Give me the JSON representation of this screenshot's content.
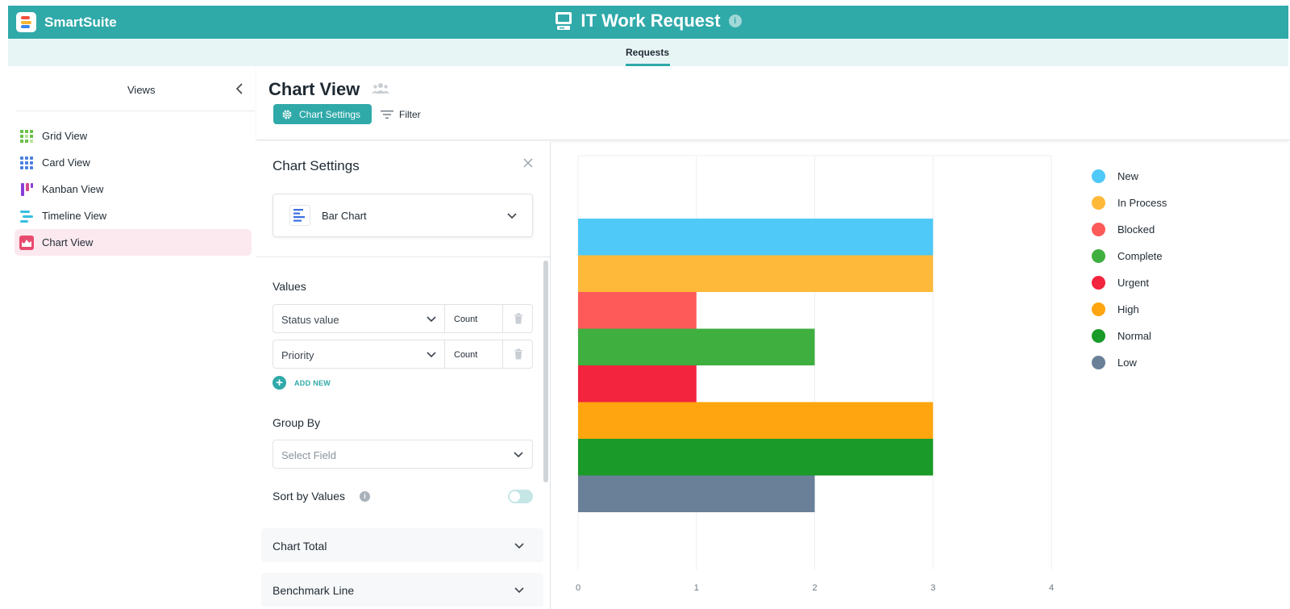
{
  "app": {
    "brand": "SmartSuite",
    "title": "IT Work Request",
    "info_icon": "info-icon",
    "active_tab": "Requests"
  },
  "sidebar": {
    "title": "Views",
    "items": [
      {
        "label": "Grid View",
        "icon": "grid-view-icon",
        "color": "#6cc04a"
      },
      {
        "label": "Card View",
        "icon": "card-view-icon",
        "color": "#4a7fe0"
      },
      {
        "label": "Kanban View",
        "icon": "kanban-view-icon",
        "color": "#8a3fd8"
      },
      {
        "label": "Timeline View",
        "icon": "timeline-view-icon",
        "color": "#38bde0"
      },
      {
        "label": "Chart View",
        "icon": "chart-view-icon",
        "color": "#e84a6f",
        "active": true
      }
    ]
  },
  "header": {
    "view_title": "Chart View",
    "chart_settings_label": "Chart Settings",
    "filter_label": "Filter"
  },
  "settings": {
    "title": "Chart Settings",
    "chart_type": "Bar Chart",
    "values_label": "Values",
    "values": [
      {
        "field": "Status value",
        "aggregation": "Count"
      },
      {
        "field": "Priority",
        "aggregation": "Count"
      }
    ],
    "add_new_label": "ADD NEW",
    "group_by_label": "Group By",
    "group_by_placeholder": "Select Field",
    "sort_by_values_label": "Sort by Values",
    "sort_by_values": false,
    "chart_total_label": "Chart Total",
    "benchmark_line_label": "Benchmark Line"
  },
  "chart_data": {
    "type": "bar",
    "orientation": "horizontal",
    "categories": [
      "New",
      "In Process",
      "Blocked",
      "Complete",
      "Urgent",
      "High",
      "Normal",
      "Low"
    ],
    "values": [
      3,
      3,
      1,
      2,
      1,
      3,
      3,
      2
    ],
    "colors": [
      "#4fc9f7",
      "#ffb93a",
      "#ff5a5a",
      "#3faf3f",
      "#f2243e",
      "#ffa50f",
      "#1a9a28",
      "#6a8098"
    ],
    "x_ticks": [
      "0",
      "1",
      "2",
      "3",
      "4"
    ],
    "xlim": [
      0,
      4
    ],
    "grid": "vertical",
    "legend_position": "right",
    "title": "",
    "xlabel": "",
    "ylabel": ""
  },
  "colors": {
    "accent": "#30a9a9",
    "tabbar": "#e8f5f5",
    "active_view_bg": "#fce8ef"
  }
}
